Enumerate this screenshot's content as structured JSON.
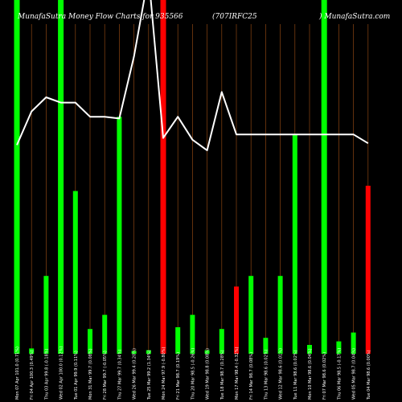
{
  "chart_data": {
    "type": "bar",
    "title": {
      "left": "MunafaSutra  Money Flow  Charts for 935566",
      "middle": "(707IRFC25",
      "right": ") MunafaSutra.com"
    },
    "categories": [
      "Mon 07 Apr 101.0 (0.71%)",
      "Fri 04 Apr 100.3 (0.49%)",
      "Thu 03 Apr 99.8 (-0.18%)",
      "Wed 02 Apr 100.0 (0.12%)",
      "Tue 01 Apr 99.9 (0.11%)",
      "Mon 31 Mar 99.7 (0.08%)",
      "Fri 28 Mar 99.7 (-0.05%)",
      "Thu 27 Mar 99.7 (0.34%)",
      "Wed 26 Mar 99.4 (0.20%)",
      "Tue 25 Mar 99.2 (1.34%)",
      "Mon 24 Mar 97.9 (-0.80%)",
      "Fri 21 Mar 98.7 (0.19%)",
      "Thu 20 Mar 98.5 (-0.26%)",
      "Wed 19 Mar 98.8 (0.08%)",
      "Tue 18 Mar 98.7 (0.28%)",
      "Mon 17 Mar 98.4 (-0.32%)",
      "Fri 14 Mar 98.7 (0.08%)",
      "Thu 13 Mar 98.6 (0.02%)",
      "Wed 12 Mar 98.6 (0.01%)",
      "Tue 11 Mar 98.6 (0.02%)",
      "Mon 10 Mar 98.6 (0.04%)",
      "Fri 07 Mar 98.6 (0.02%)",
      "Thu 06 Mar 98.5 (-0.17%)",
      "Wed 05 Mar 98.7 (0.04%)",
      "Tue 04 Mar 98.6 (0.00%)"
    ],
    "series": [
      {
        "type": "bar",
        "values": [
          {
            "value": 100,
            "color": "green"
          },
          {
            "value": 1.5,
            "color": "green"
          },
          {
            "value": 22,
            "color": "green"
          },
          {
            "value": 100,
            "color": "green"
          },
          {
            "value": 46,
            "color": "green"
          },
          {
            "value": 7,
            "color": "green"
          },
          {
            "value": 11,
            "color": "green"
          },
          {
            "value": 67,
            "color": "green"
          },
          {
            "value": 0.8,
            "color": "green"
          },
          {
            "value": 1,
            "color": "green"
          },
          {
            "value": 100,
            "color": "red"
          },
          {
            "value": 7.5,
            "color": "green"
          },
          {
            "value": 11,
            "color": "green"
          },
          {
            "value": 1,
            "color": "green"
          },
          {
            "value": 7,
            "color": "green"
          },
          {
            "value": 19,
            "color": "red"
          },
          {
            "value": 22,
            "color": "green"
          },
          {
            "value": 4.5,
            "color": "green"
          },
          {
            "value": 22,
            "color": "green"
          },
          {
            "value": 62,
            "color": "green"
          },
          {
            "value": 2.5,
            "color": "green"
          },
          {
            "value": 100,
            "color": "green"
          },
          {
            "value": 3.5,
            "color": "green"
          },
          {
            "value": 6,
            "color": "green"
          },
          {
            "value": 47.5,
            "color": "red"
          }
        ]
      },
      {
        "type": "line",
        "values": [
          59,
          68.5,
          72.5,
          71,
          71,
          67,
          67,
          66.5,
          84,
          107,
          61,
          67,
          60.5,
          57.5,
          74,
          62,
          62,
          62,
          62,
          62,
          62,
          62,
          62,
          62,
          59.5
        ]
      }
    ],
    "ylim": [
      0,
      100
    ],
    "grid": true,
    "colors": {
      "background": "#000000",
      "grid": "#8b4513",
      "green": "#00ff00",
      "red": "#ff0000",
      "line": "#ffffff",
      "text": "#ffffff"
    }
  }
}
